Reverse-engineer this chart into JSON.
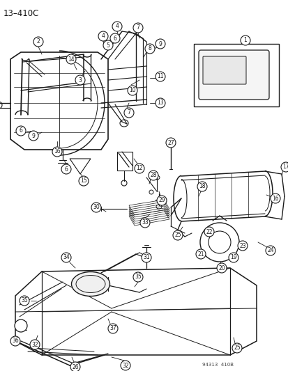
{
  "header": "13–410C",
  "footer": "94313  410B",
  "bg_color": "#ffffff",
  "line_color": "#1a1a1a",
  "circle_color": "#1a1a1a",
  "fig_width": 4.14,
  "fig_height": 5.33,
  "dpi": 100
}
